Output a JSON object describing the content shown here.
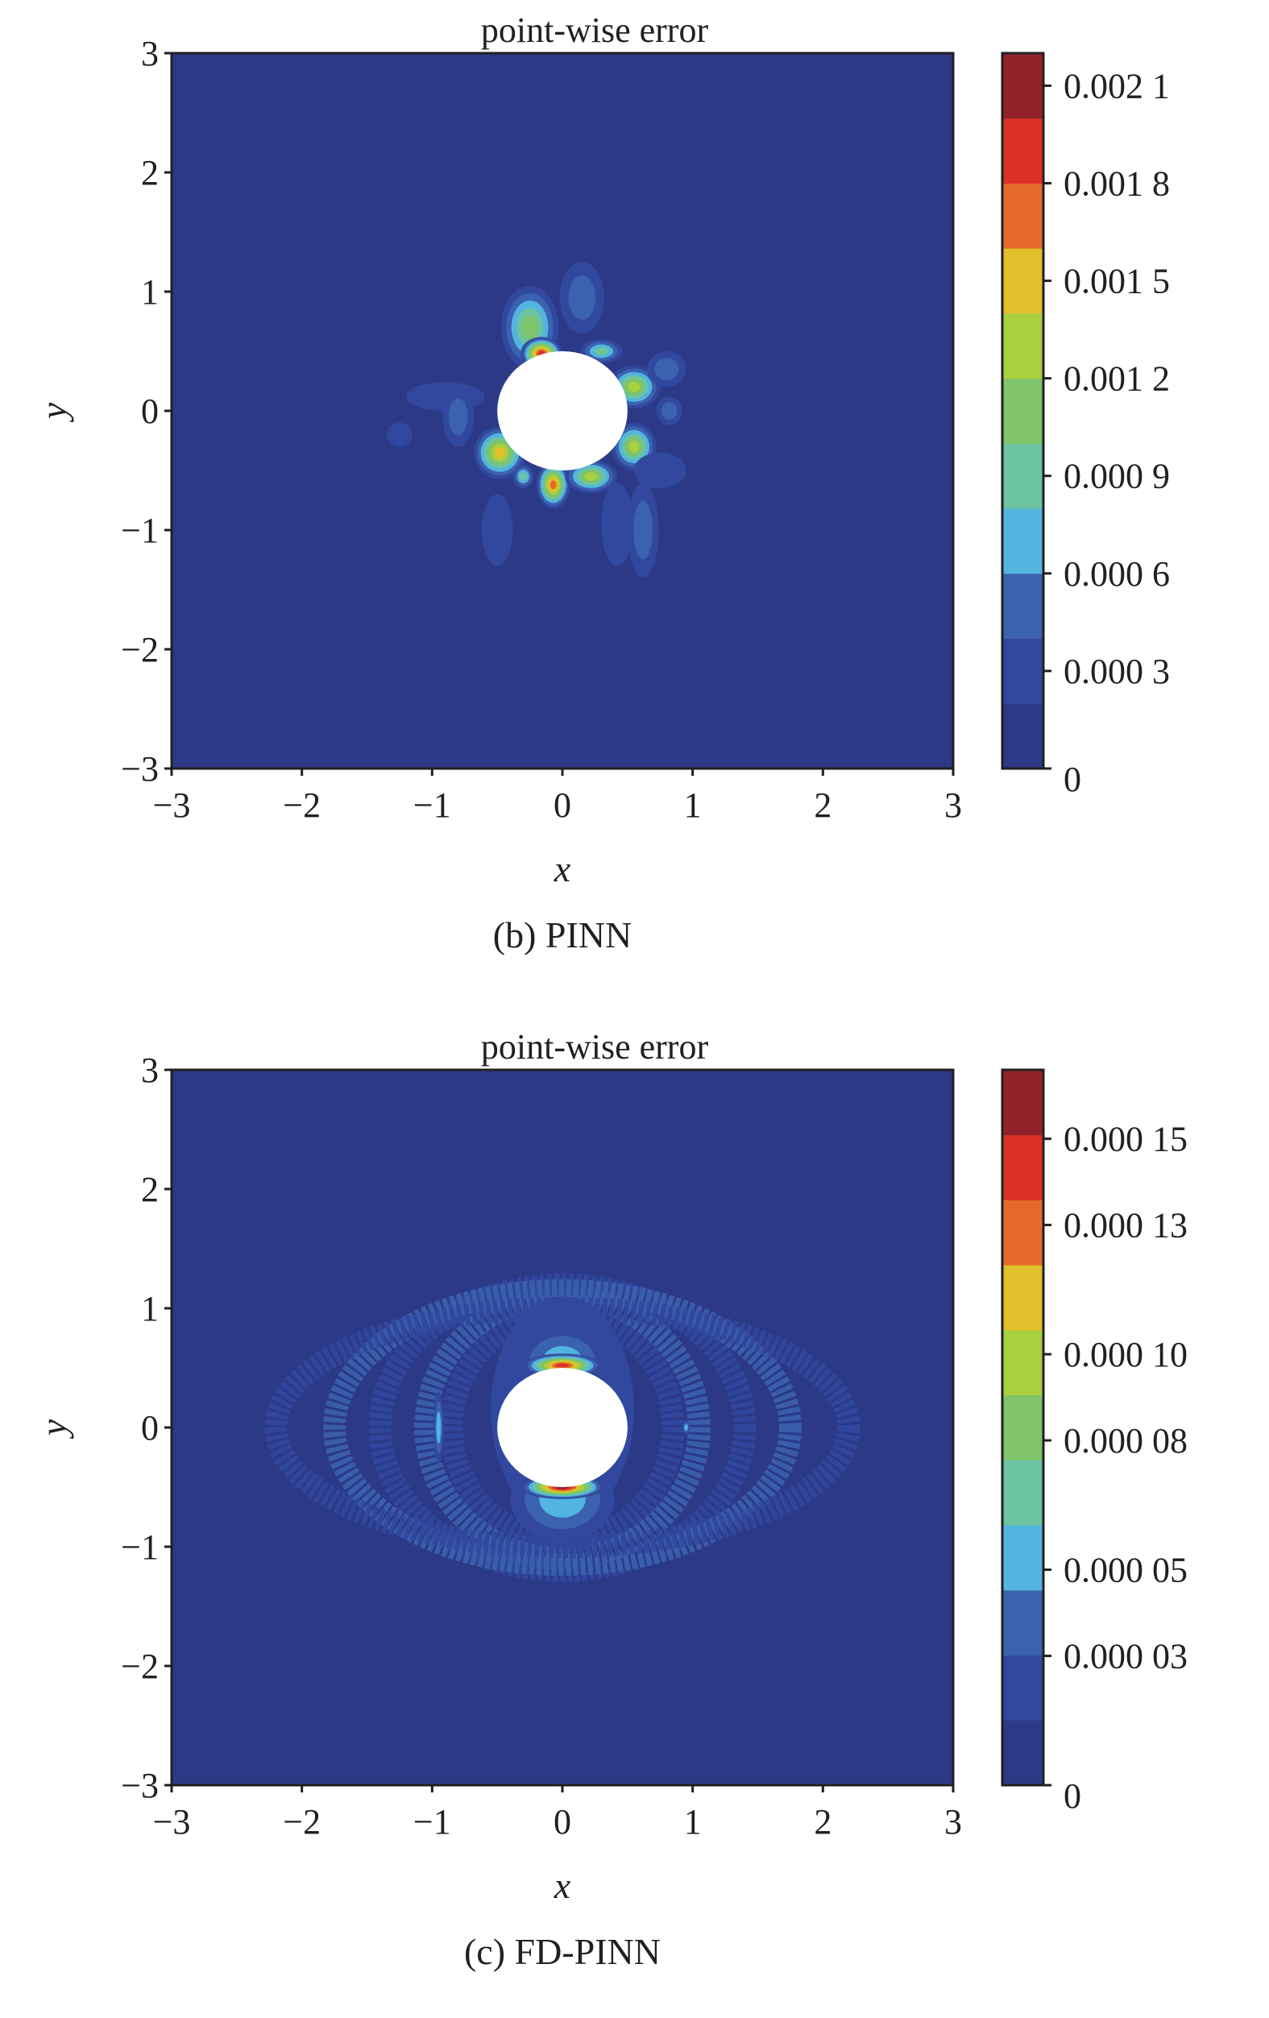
{
  "palette": [
    "#2c3986",
    "#31489e",
    "#3b62ae",
    "#52b4e0",
    "#6bc3a0",
    "#7fc36a",
    "#a8d03f",
    "#e1c02b",
    "#e56a2a",
    "#db3127",
    "#93232a"
  ],
  "hole_color": "#ffffff",
  "chart_data": [
    {
      "type": "heatmap",
      "title": "point-wise error",
      "xlabel": "x",
      "ylabel": "y",
      "caption": "(b) PINN",
      "xlim": [
        -3,
        3
      ],
      "ylim": [
        -3,
        3
      ],
      "xticks": [
        "−3",
        "−2",
        "−1",
        "0",
        "1",
        "2",
        "3"
      ],
      "xtick_values": [
        -3,
        -2,
        -1,
        0,
        1,
        2,
        3
      ],
      "yticks": [
        "−3",
        "−2",
        "−1",
        "0",
        "1",
        "2",
        "3"
      ],
      "ytick_values": [
        -3,
        -2,
        -1,
        0,
        1,
        2,
        3
      ],
      "colorbar": {
        "range": [
          0,
          0.0022
        ],
        "levels": 11,
        "tick_labels": [
          "0",
          "0.000 3",
          "0.000 6",
          "0.000 9",
          "0.001 2",
          "0.001 5",
          "0.001 8",
          "0.002 1"
        ],
        "tick_values": [
          0,
          0.0003,
          0.0006,
          0.0009,
          0.0012,
          0.0015,
          0.0018,
          0.0021
        ]
      },
      "obstacle": {
        "shape": "circle",
        "x": 0,
        "y": 0,
        "r": 0.5
      },
      "features": [
        {
          "x": 0.15,
          "y": 0.95,
          "rx": 0.17,
          "ry": 0.3,
          "peak": 2
        },
        {
          "x": -0.25,
          "y": 0.7,
          "rx": 0.22,
          "ry": 0.35,
          "peak": 5
        },
        {
          "x": -0.16,
          "y": 0.48,
          "rx": 0.16,
          "ry": 0.14,
          "peak": 9
        },
        {
          "x": 0.3,
          "y": 0.5,
          "rx": 0.16,
          "ry": 0.1,
          "peak": 4
        },
        {
          "x": 0.55,
          "y": 0.2,
          "rx": 0.2,
          "ry": 0.18,
          "peak": 6
        },
        {
          "x": 0.8,
          "y": 0.35,
          "rx": 0.15,
          "ry": 0.15,
          "peak": 2
        },
        {
          "x": 0.82,
          "y": 0.0,
          "rx": 0.1,
          "ry": 0.12,
          "peak": 2
        },
        {
          "x": -0.9,
          "y": 0.12,
          "rx": 0.3,
          "ry": 0.12,
          "peak": 1
        },
        {
          "x": -0.8,
          "y": -0.05,
          "rx": 0.12,
          "ry": 0.25,
          "peak": 2
        },
        {
          "x": -1.25,
          "y": -0.2,
          "rx": 0.1,
          "ry": 0.1,
          "peak": 1
        },
        {
          "x": -0.48,
          "y": -0.35,
          "rx": 0.2,
          "ry": 0.22,
          "peak": 7
        },
        {
          "x": -0.3,
          "y": -0.55,
          "rx": 0.08,
          "ry": 0.1,
          "peak": 4
        },
        {
          "x": -0.07,
          "y": -0.62,
          "rx": 0.13,
          "ry": 0.2,
          "peak": 8
        },
        {
          "x": 0.22,
          "y": -0.55,
          "rx": 0.2,
          "ry": 0.14,
          "peak": 6
        },
        {
          "x": 0.55,
          "y": -0.3,
          "rx": 0.17,
          "ry": 0.2,
          "peak": 6
        },
        {
          "x": -0.5,
          "y": -1.0,
          "rx": 0.12,
          "ry": 0.3,
          "peak": 1
        },
        {
          "x": 0.42,
          "y": -0.95,
          "rx": 0.12,
          "ry": 0.35,
          "peak": 1
        },
        {
          "x": 0.62,
          "y": -1.0,
          "rx": 0.12,
          "ry": 0.4,
          "peak": 2
        },
        {
          "x": 0.75,
          "y": -0.5,
          "rx": 0.2,
          "ry": 0.15,
          "peak": 1
        }
      ]
    },
    {
      "type": "heatmap",
      "title": "point-wise error",
      "xlabel": "x",
      "ylabel": "y",
      "caption": "(c) FD-PINN",
      "xlim": [
        -3,
        3
      ],
      "ylim": [
        -3,
        3
      ],
      "xticks": [
        "−3",
        "−2",
        "−1",
        "0",
        "1",
        "2",
        "3"
      ],
      "xtick_values": [
        -3,
        -2,
        -1,
        0,
        1,
        2,
        3
      ],
      "yticks": [
        "−3",
        "−2",
        "−1",
        "0",
        "1",
        "2",
        "3"
      ],
      "ytick_values": [
        -3,
        -2,
        -1,
        0,
        1,
        2,
        3
      ],
      "colorbar": {
        "range": [
          0,
          0.000166
        ],
        "levels": 11,
        "tick_labels": [
          "0",
          "0.000 03",
          "0.000 05",
          "0.000 08",
          "0.000 10",
          "0.000 13",
          "0.000 15"
        ],
        "tick_values": [
          0,
          3e-05,
          5e-05,
          8e-05,
          0.0001,
          0.00013,
          0.00015
        ]
      },
      "obstacle": {
        "shape": "circle",
        "x": 0,
        "y": 0,
        "r": 0.5
      },
      "rings": [
        {
          "rx": 0.85,
          "ry": 0.95,
          "level": 1
        },
        {
          "rx": 1.05,
          "ry": 1.1,
          "level": 2
        },
        {
          "rx": 1.4,
          "ry": 1.2,
          "level": 1
        },
        {
          "rx": 1.75,
          "ry": 1.15,
          "level": 2
        },
        {
          "rx": 2.2,
          "ry": 1.0,
          "level": 1
        }
      ],
      "features": [
        {
          "x": 0,
          "y": 0.15,
          "rx": 0.55,
          "ry": 0.95,
          "peak": 2
        },
        {
          "x": 0,
          "y": 0.55,
          "rx": 0.35,
          "ry": 0.3,
          "peak": 3
        },
        {
          "x": 0,
          "y": -0.6,
          "rx": 0.4,
          "ry": 0.35,
          "peak": 3
        },
        {
          "x": 0,
          "y": 0.52,
          "rx": 0.3,
          "ry": 0.1,
          "peak": 9
        },
        {
          "x": 0,
          "y": -0.5,
          "rx": 0.32,
          "ry": 0.1,
          "peak": 10
        },
        {
          "x": -0.95,
          "y": 0.0,
          "rx": 0.04,
          "ry": 0.3,
          "peak": 3
        },
        {
          "x": 0.95,
          "y": 0.0,
          "rx": 0.03,
          "ry": 0.06,
          "peak": 3
        }
      ]
    }
  ]
}
